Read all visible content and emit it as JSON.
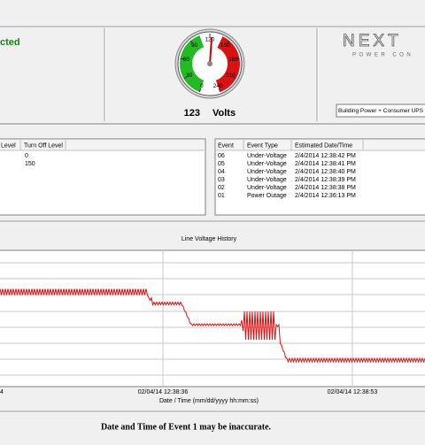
{
  "status": {
    "text": "cted"
  },
  "gauge": {
    "ticks": [
      0,
      30,
      60,
      90,
      120,
      150,
      180,
      210,
      240
    ],
    "value": 123,
    "unit": "Volts"
  },
  "logo": {
    "brand": "NEXT",
    "tagline": "POWER CON"
  },
  "device_select": {
    "text": "Building Power + Consumer UPS"
  },
  "levels_table": {
    "headers": [
      "Level",
      "Turn Off Level"
    ],
    "turn_off_values": [
      "0",
      "150"
    ]
  },
  "events_table": {
    "headers": [
      "Event",
      "Event Type",
      "Estimated Date/Time"
    ],
    "rows": [
      [
        "06",
        "Under-Voltage",
        "2/4/2014 12:38:42 PM"
      ],
      [
        "05",
        "Under-Voltage",
        "2/4/2014 12:38:41 PM"
      ],
      [
        "04",
        "Under-Voltage",
        "2/4/2014 12:38:40 PM"
      ],
      [
        "03",
        "Under-Voltage",
        "2/4/2014 12:38:39 PM"
      ],
      [
        "02",
        "Under-Voltage",
        "2/4/2014 12:38:38 PM"
      ],
      [
        "01",
        "Power Outage",
        "2/4/2014 12:36:13 PM"
      ]
    ]
  },
  "history_chart": {
    "title": "Line Voltage History",
    "x_labels": [
      "4",
      "02/04/14 12:38:36",
      "02/04/14 12:38:53"
    ],
    "x_axis_label": "Date / Time (mm/dd/yyyy hh:mm:ss)"
  },
  "footer": {
    "warning": "Date and Time of Event 1 may be inaccurate."
  }
}
